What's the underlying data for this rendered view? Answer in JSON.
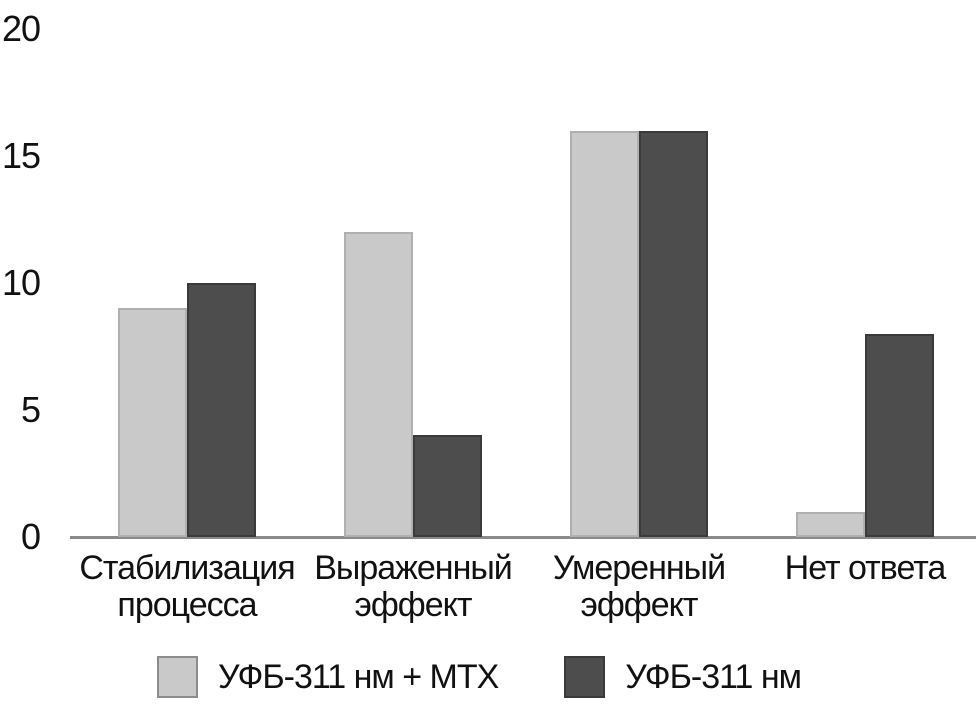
{
  "chart_data": {
    "type": "bar",
    "title": "",
    "xlabel": "",
    "ylabel": "",
    "categories": [
      "Стабилизация процесса",
      "Выраженный эффект",
      "Умеренный эффект",
      "Нет ответа"
    ],
    "category_lines": [
      [
        "Стабилизация",
        "процесса"
      ],
      [
        "Выраженный",
        "эффект"
      ],
      [
        "Умеренный",
        "эффект"
      ],
      [
        "Нет ответа"
      ]
    ],
    "series": [
      {
        "name": "УФБ-311 нм + МТХ",
        "values": [
          9,
          12,
          16,
          1
        ],
        "color": "#c9c9c9",
        "border_color": "#b0b0b0"
      },
      {
        "name": "УФБ-311 нм",
        "values": [
          10,
          4,
          16,
          8
        ],
        "color": "#4d4d4d",
        "border_color": "#3a3a3a"
      }
    ],
    "ylim": [
      0,
      20
    ],
    "yticks": [
      0,
      5,
      10,
      15,
      20
    ],
    "grid": false,
    "legend_position": "bottom",
    "axis_line_color": "#8a8a8a",
    "text_color": "#111111"
  }
}
